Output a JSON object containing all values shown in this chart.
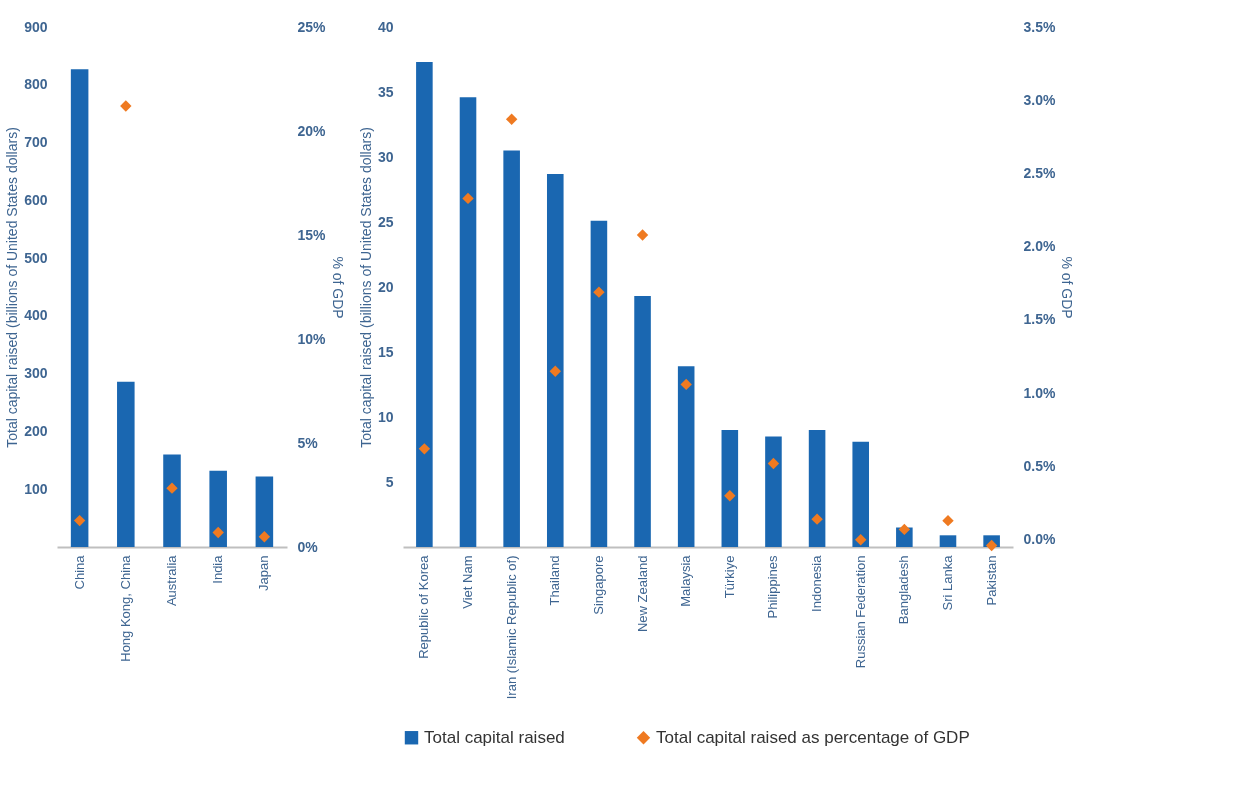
{
  "chart_data": [
    {
      "type": "bar",
      "categories": [
        "China",
        "Hong Kong, China",
        "Australia",
        "India",
        "Japan"
      ],
      "ylabel": "Total capital raised (billions of United States dollars)",
      "y2label": "% of GDP",
      "ylim": [
        0,
        900
      ],
      "yticks": [
        100,
        200,
        300,
        400,
        500,
        600,
        700,
        800,
        900
      ],
      "y2lim": [
        0,
        25
      ],
      "y2ticks": [
        {
          "value": 0,
          "label": "0%"
        },
        {
          "value": 5,
          "label": "5%"
        },
        {
          "value": 10,
          "label": "10%"
        },
        {
          "value": 15,
          "label": "15%"
        },
        {
          "value": 20,
          "label": "20%"
        },
        {
          "value": 25,
          "label": "25%"
        }
      ],
      "marker": "diamond",
      "grid": false,
      "series": [
        {
          "color": "#1a67b1",
          "values": [
            827,
            286,
            160,
            132,
            122
          ]
        },
        {
          "type": "scatter",
          "axis": "y2",
          "color": "#ef7a21",
          "values": [
            1.27,
            21.2,
            2.83,
            0.7,
            0.49
          ]
        }
      ]
    },
    {
      "type": "bar",
      "categories": [
        "Republic of Korea",
        "Viet Nam",
        "Iran (Islamic Republic of)",
        "Thailand",
        "Singapore",
        "New Zealand",
        "Malaysia",
        "Türkiye",
        "Philippines",
        "Indonesia",
        "Russian Federation",
        "Bangladesh",
        "Sri Lanka",
        "Pakistan"
      ],
      "ylabel": "Total capital raised (billions of United States dollars)",
      "y2label": "% of GDP",
      "ylim": [
        0,
        40
      ],
      "yticks": [
        5,
        10,
        15,
        20,
        25,
        30,
        35,
        40
      ],
      "y2lim": [
        -0.05,
        3.5
      ],
      "y2ticks": [
        {
          "value": 0,
          "label": "0.0%"
        },
        {
          "value": 0.5,
          "label": "0.5%"
        },
        {
          "value": 1,
          "label": "1.0%"
        },
        {
          "value": 1.5,
          "label": "1.5%"
        },
        {
          "value": 2,
          "label": "2.0%"
        },
        {
          "value": 2.5,
          "label": "2.5%"
        },
        {
          "value": 3,
          "label": "3.0%"
        },
        {
          "value": 3.5,
          "label": "3.5%"
        }
      ],
      "marker": "diamond",
      "grid": false,
      "legend": "bottom",
      "series": [
        {
          "name": "Total capital raised",
          "color": "#1a67b1",
          "values": [
            37.3,
            34.6,
            30.5,
            28.7,
            25.1,
            19.3,
            13.9,
            9.0,
            8.5,
            9.0,
            8.1,
            1.5,
            0.9,
            0.9
          ]
        },
        {
          "name": "Total capital raised as percentage of GDP",
          "type": "scatter",
          "axis": "y2",
          "color": "#ef7a21",
          "values": [
            0.62,
            2.33,
            2.87,
            1.15,
            1.69,
            2.08,
            1.06,
            0.3,
            0.52,
            0.14,
            0.0,
            0.07,
            0.13,
            -0.04
          ]
        }
      ]
    }
  ]
}
